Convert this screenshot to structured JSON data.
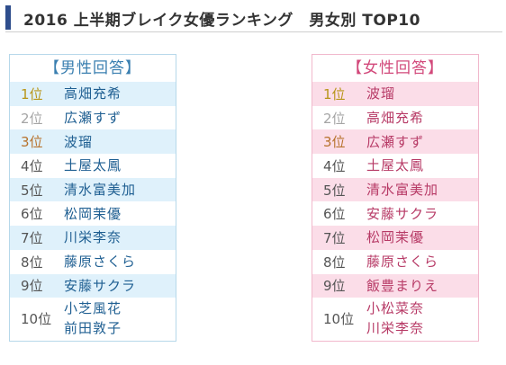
{
  "title": "2016 上半期ブレイク女優ランキング　男女別 TOP10",
  "panels": {
    "male": {
      "title": "【男性回答】",
      "rows": [
        {
          "rank": "1位",
          "names": [
            "高畑充希"
          ]
        },
        {
          "rank": "2位",
          "names": [
            "広瀬すず"
          ]
        },
        {
          "rank": "3位",
          "names": [
            "波瑠"
          ]
        },
        {
          "rank": "4位",
          "names": [
            "土屋太鳳"
          ]
        },
        {
          "rank": "5位",
          "names": [
            "清水富美加"
          ]
        },
        {
          "rank": "6位",
          "names": [
            "松岡茉優"
          ]
        },
        {
          "rank": "7位",
          "names": [
            "川栄李奈"
          ]
        },
        {
          "rank": "8位",
          "names": [
            "藤原さくら"
          ]
        },
        {
          "rank": "9位",
          "names": [
            "安藤サクラ"
          ]
        },
        {
          "rank": "10位",
          "names": [
            "小芝風花",
            "前田敦子"
          ]
        }
      ]
    },
    "female": {
      "title": "【女性回答】",
      "rows": [
        {
          "rank": "1位",
          "names": [
            "波瑠"
          ]
        },
        {
          "rank": "2位",
          "names": [
            "高畑充希"
          ]
        },
        {
          "rank": "3位",
          "names": [
            "広瀬すず"
          ]
        },
        {
          "rank": "4位",
          "names": [
            "土屋太鳳"
          ]
        },
        {
          "rank": "5位",
          "names": [
            "清水富美加"
          ]
        },
        {
          "rank": "6位",
          "names": [
            "安藤サクラ"
          ]
        },
        {
          "rank": "7位",
          "names": [
            "松岡茉優"
          ]
        },
        {
          "rank": "8位",
          "names": [
            "藤原さくら"
          ]
        },
        {
          "rank": "9位",
          "names": [
            "飯豊まりえ"
          ]
        },
        {
          "rank": "10位",
          "names": [
            "小松菜奈",
            "川栄李奈"
          ]
        }
      ]
    }
  },
  "colors": {
    "header_bar": "#2e4d8c",
    "male_accent": "#3a7fb0",
    "male_shade": "#dff1fb",
    "female_accent": "#d2487a",
    "female_shade": "#fbdde8",
    "rank_1": "#b89518",
    "rank_2": "#a5a5a5",
    "rank_3": "#b7722d"
  }
}
